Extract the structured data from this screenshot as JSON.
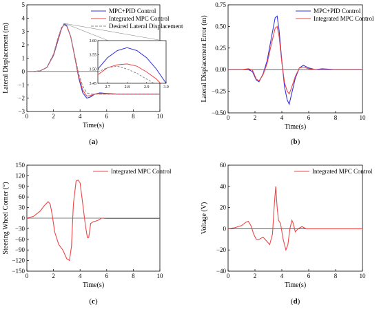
{
  "colors": {
    "mpc_pid": "#3333dd",
    "integrated": "#ee4444",
    "desired": "#888888",
    "axis": "#000000"
  },
  "chart_data": [
    {
      "id": "a",
      "type": "line",
      "caption_letter": "a",
      "caption_prefix": "(",
      "caption_suffix": ")",
      "xlabel": "Time(s)",
      "ylabel": "Lateral Displacement (m)",
      "xlim": [
        0,
        10
      ],
      "ylim": [
        -3,
        5
      ],
      "xticks": [
        0,
        2,
        4,
        6,
        8,
        10
      ],
      "yticks": [
        -3,
        -2,
        -1,
        0,
        1,
        2,
        3,
        4,
        5
      ],
      "legend_position": "top-right",
      "series": [
        {
          "name": "MPC+PID Control",
          "color": "#3333dd",
          "style": "solid",
          "x": [
            0,
            0.5,
            1,
            1.5,
            2,
            2.3,
            2.6,
            2.8,
            3.0,
            3.3,
            3.6,
            3.9,
            4.2,
            4.5,
            4.8,
            5.1,
            5.5,
            6,
            7,
            8,
            9,
            10
          ],
          "y": [
            0,
            0,
            0.05,
            0.3,
            1.2,
            2.2,
            3.2,
            3.57,
            3.45,
            2.6,
            1.1,
            -0.5,
            -1.6,
            -2.0,
            -1.9,
            -1.7,
            -1.6,
            -1.65,
            -1.7,
            -1.7,
            -1.7,
            -1.7
          ]
        },
        {
          "name": "Integrated MPC Control",
          "color": "#ee4444",
          "style": "solid",
          "x": [
            0,
            0.5,
            1,
            1.5,
            2,
            2.3,
            2.6,
            2.8,
            3.0,
            3.3,
            3.6,
            3.9,
            4.2,
            4.5,
            4.8,
            5.1,
            5.5,
            6,
            7,
            8,
            9,
            10
          ],
          "y": [
            0,
            0,
            0.05,
            0.3,
            1.25,
            2.3,
            3.25,
            3.51,
            3.4,
            2.6,
            1.1,
            -0.4,
            -1.4,
            -1.85,
            -1.8,
            -1.7,
            -1.65,
            -1.68,
            -1.7,
            -1.7,
            -1.7,
            -1.7
          ]
        },
        {
          "name": "Desired Lateral Displacement",
          "color": "#888888",
          "style": "dashed",
          "x": [
            0,
            0.5,
            1,
            1.5,
            2,
            2.3,
            2.6,
            2.8,
            3.0,
            3.3,
            3.6,
            3.9,
            4.2,
            4.5,
            4.8,
            5.2,
            6,
            7,
            8,
            9,
            10
          ],
          "y": [
            0,
            0,
            0.05,
            0.3,
            1.3,
            2.4,
            3.3,
            3.5,
            3.4,
            2.6,
            1.2,
            -0.2,
            -1.1,
            -1.6,
            -1.7,
            -1.7,
            -1.7,
            -1.7,
            -1.7,
            -1.7,
            -1.7
          ]
        }
      ],
      "inset": {
        "xlim": [
          2.65,
          3.0
        ],
        "ylim": [
          3.45,
          3.6
        ],
        "xticks": [
          2.7,
          2.8,
          2.9,
          3.0
        ],
        "yticks": [
          3.45,
          3.5,
          3.55,
          3.6
        ],
        "series": [
          {
            "name": "MPC+PID Control",
            "x": [
              2.65,
              2.7,
              2.75,
              2.8,
              2.85,
              2.9,
              2.95,
              3.0
            ],
            "y": [
              3.5,
              3.54,
              3.565,
              3.575,
              3.565,
              3.54,
              3.5,
              3.45
            ]
          },
          {
            "name": "Integrated MPC Control",
            "x": [
              2.65,
              2.7,
              2.75,
              2.8,
              2.85,
              2.9,
              2.95,
              3.0
            ],
            "y": [
              3.48,
              3.505,
              3.515,
              3.518,
              3.51,
              3.49,
              3.465,
              3.43
            ]
          },
          {
            "name": "Desired Lateral Displacement",
            "x": [
              2.65,
              2.7,
              2.75,
              2.8,
              2.85,
              2.9,
              2.95
            ],
            "y": [
              3.49,
              3.505,
              3.51,
              3.5,
              3.485,
              3.465,
              3.445
            ]
          }
        ]
      }
    },
    {
      "id": "b",
      "type": "line",
      "caption_letter": "b",
      "caption_prefix": "(",
      "caption_suffix": ")",
      "xlabel": "Time(s)",
      "ylabel": "Lateral Displacement Error (m)",
      "xlim": [
        0,
        10
      ],
      "ylim": [
        -0.5,
        0.75
      ],
      "xticks": [
        0,
        2,
        4,
        6,
        8,
        10
      ],
      "yticks": [
        -0.5,
        -0.25,
        0,
        0.25,
        0.5,
        0.75
      ],
      "ytick_labels": [
        "−0.50",
        "−0.25",
        "0.00",
        "0.25",
        "0.50",
        "0.75"
      ],
      "legend_position": "top-right",
      "series": [
        {
          "name": "MPC+PID Control",
          "color": "#3333dd",
          "style": "solid",
          "x": [
            0,
            1,
            1.5,
            1.8,
            2.1,
            2.3,
            2.6,
            2.9,
            3.2,
            3.5,
            3.65,
            3.8,
            4.0,
            4.2,
            4.4,
            4.55,
            4.7,
            5.0,
            5.3,
            5.6,
            6.0,
            6.5,
            7,
            8,
            9,
            10
          ],
          "y": [
            0,
            0,
            0,
            -0.02,
            -0.12,
            -0.14,
            -0.05,
            0.1,
            0.35,
            0.6,
            0.62,
            0.45,
            0.1,
            -0.2,
            -0.35,
            -0.4,
            -0.3,
            -0.1,
            0.02,
            0.05,
            0.02,
            0,
            0.01,
            0,
            0,
            0
          ]
        },
        {
          "name": "Integrated MPC Control",
          "color": "#ee4444",
          "style": "solid",
          "x": [
            0,
            1,
            1.5,
            1.8,
            2.1,
            2.3,
            2.6,
            2.9,
            3.2,
            3.5,
            3.65,
            3.8,
            4.0,
            4.2,
            4.4,
            4.55,
            4.7,
            5.0,
            5.3,
            5.6,
            6.0,
            6.5,
            7,
            8,
            9,
            10
          ],
          "y": [
            0,
            0,
            0.01,
            0.0,
            -0.11,
            -0.13,
            -0.06,
            0.07,
            0.28,
            0.48,
            0.5,
            0.38,
            0.08,
            -0.15,
            -0.25,
            -0.28,
            -0.22,
            -0.08,
            0.02,
            0.03,
            0.01,
            0,
            0,
            0,
            0,
            0
          ]
        }
      ]
    },
    {
      "id": "c",
      "type": "line",
      "caption_letter": "c",
      "caption_prefix": "(",
      "caption_suffix": ")",
      "xlabel": "Time(s)",
      "ylabel": "Steering Wheel Corner (°)",
      "xlim": [
        0,
        10
      ],
      "ylim": [
        -150,
        150
      ],
      "xticks": [
        0,
        2,
        4,
        6,
        8,
        10
      ],
      "yticks": [
        -150,
        -120,
        -90,
        -60,
        -30,
        0,
        30,
        60,
        90,
        120,
        150
      ],
      "ytick_labels": [
        "−150",
        "−120",
        "−90",
        "−60",
        "−30",
        "0",
        "30",
        "60",
        "90",
        "120",
        "150"
      ],
      "legend_position": "top-right",
      "series": [
        {
          "name": "Integrated MPC Control",
          "color": "#ee4444",
          "style": "solid",
          "x": [
            0,
            0.5,
            1.0,
            1.3,
            1.6,
            1.75,
            1.9,
            2.1,
            2.4,
            2.7,
            3.0,
            3.2,
            3.35,
            3.5,
            3.7,
            3.85,
            4.0,
            4.2,
            4.4,
            4.55,
            4.65,
            4.8,
            5.0,
            5.2,
            5.4,
            5.6,
            6,
            7,
            8,
            9,
            10
          ],
          "y": [
            0,
            5,
            20,
            35,
            47,
            40,
            10,
            -40,
            -75,
            -90,
            -115,
            -120,
            -80,
            40,
            105,
            108,
            100,
            40,
            -20,
            -55,
            -55,
            -15,
            -10,
            -8,
            -5,
            0,
            -1,
            -1,
            -1,
            -1,
            -1
          ]
        }
      ]
    },
    {
      "id": "d",
      "type": "line",
      "caption_letter": "d",
      "caption_prefix": "(",
      "caption_suffix": ")",
      "xlabel": "Time(s)",
      "ylabel": "Voltage (V)",
      "xlim": [
        0,
        10
      ],
      "ylim": [
        -40,
        60
      ],
      "xticks": [
        0,
        2,
        4,
        6,
        8,
        10
      ],
      "yticks": [
        -40,
        -20,
        0,
        20,
        40,
        60
      ],
      "ytick_labels": [
        "−40",
        "−20",
        "0",
        "20",
        "40",
        "60"
      ],
      "legend_position": "top-right",
      "series": [
        {
          "name": "Integrated MPC Control",
          "color": "#ee4444",
          "style": "solid",
          "x": [
            0,
            0.5,
            1.0,
            1.3,
            1.5,
            1.7,
            1.9,
            2.1,
            2.3,
            2.6,
            2.9,
            3.1,
            3.3,
            3.45,
            3.55,
            3.65,
            3.75,
            3.9,
            4.1,
            4.3,
            4.45,
            4.6,
            4.75,
            4.85,
            5.0,
            5.2,
            5.5,
            5.8,
            6.2,
            7,
            8,
            9,
            10
          ],
          "y": [
            0,
            1,
            3,
            6,
            7,
            3,
            -5,
            -10,
            -10,
            -8,
            -12,
            -15,
            -5,
            25,
            40,
            20,
            8,
            5,
            -10,
            -20,
            -15,
            0,
            8,
            5,
            -3,
            0,
            2,
            0,
            0,
            0,
            0,
            0,
            0
          ]
        }
      ]
    }
  ]
}
